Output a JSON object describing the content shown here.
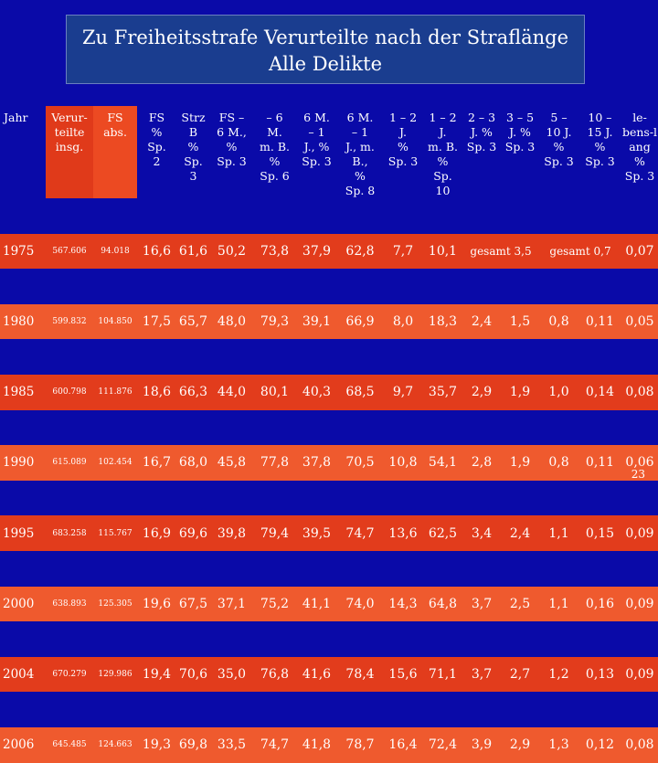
{
  "title": {
    "line1": "Zu Freiheitsstrafe Verurteilte nach der Straflänge",
    "line2": "Alle Delikte"
  },
  "headers": [
    [
      "Jahr"
    ],
    [
      "Verur-",
      "teilte",
      "insg."
    ],
    [
      "FS",
      "abs."
    ],
    [
      "FS",
      "%",
      "Sp.",
      "2"
    ],
    [
      "Strz",
      "B",
      "%",
      "Sp.",
      "3"
    ],
    [
      "FS –",
      "6 M.,",
      "%",
      "Sp. 3"
    ],
    [
      "– 6",
      "M.",
      "m. B.",
      "%",
      "Sp. 6"
    ],
    [
      "6 M.",
      "– 1",
      "J., %",
      "Sp. 3"
    ],
    [
      "6 M.",
      "– 1",
      "J., m.",
      "B.,",
      "%",
      "Sp. 8"
    ],
    [
      "1 – 2",
      "J.",
      "%",
      "Sp. 3"
    ],
    [
      "1 – 2",
      "J.",
      "m. B.",
      "%",
      "Sp.",
      "10"
    ],
    [
      "2 – 3",
      "J. %",
      "Sp. 3"
    ],
    [
      "3 – 5",
      "J. %",
      "Sp. 3"
    ],
    [
      "5 –",
      "10 J.",
      "%",
      "Sp. 3"
    ],
    [
      "10 –",
      "15 J.",
      "%",
      "Sp. 3"
    ],
    [
      "le-",
      "bens-l",
      "ang",
      "%",
      "Sp. 3"
    ]
  ],
  "row_1975": {
    "cells": [
      "1975",
      "567.606",
      "94.018",
      "16,6",
      "61,6",
      "50,2",
      "73,8",
      "37,9",
      "62,8",
      "7,7",
      "10,1"
    ],
    "gesamt_1": "gesamt 3,5",
    "gesamt_2": "gesamt 0,7",
    "last": "0,07"
  },
  "rows": [
    [
      "1980",
      "599.832",
      "104.850",
      "17,5",
      "65,7",
      "48,0",
      "79,3",
      "39,1",
      "66,9",
      "8,0",
      "18,3",
      "2,4",
      "1,5",
      "0,8",
      "0,11",
      "0,05"
    ],
    [
      "1985",
      "600.798",
      "111.876",
      "18,6",
      "66,3",
      "44,0",
      "80,1",
      "40,3",
      "68,5",
      "9,7",
      "35,7",
      "2,9",
      "1,9",
      "1,0",
      "0,14",
      "0,08"
    ],
    [
      "1990",
      "615.089",
      "102.454",
      "16,7",
      "68,0",
      "45,8",
      "77,8",
      "37,8",
      "70,5",
      "10,8",
      "54,1",
      "2,8",
      "1,9",
      "0,8",
      "0,11",
      "0,06"
    ],
    [
      "1995",
      "683.258",
      "115.767",
      "16,9",
      "69,6",
      "39,8",
      "79,4",
      "39,5",
      "74,7",
      "13,6",
      "62,5",
      "3,4",
      "2,4",
      "1,1",
      "0,15",
      "0,09"
    ],
    [
      "2000",
      "638.893",
      "125.305",
      "19,6",
      "67,5",
      "37,1",
      "75,2",
      "41,1",
      "74,0",
      "14,3",
      "64,8",
      "3,7",
      "2,5",
      "1,1",
      "0,16",
      "0,09"
    ],
    [
      "2004",
      "670.279",
      "129.986",
      "19,4",
      "70,6",
      "35,0",
      "76,8",
      "41,6",
      "78,4",
      "15,6",
      "71,1",
      "3,7",
      "2,7",
      "1,2",
      "0,13",
      "0,09"
    ],
    [
      "2006",
      "645.485",
      "124.663",
      "19,3",
      "69,8",
      "33,5",
      "74,7",
      "41,8",
      "78,7",
      "16,4",
      "72,4",
      "3,9",
      "2,9",
      "1,3",
      "0,12",
      "0,08"
    ]
  ],
  "page_number": "23"
}
